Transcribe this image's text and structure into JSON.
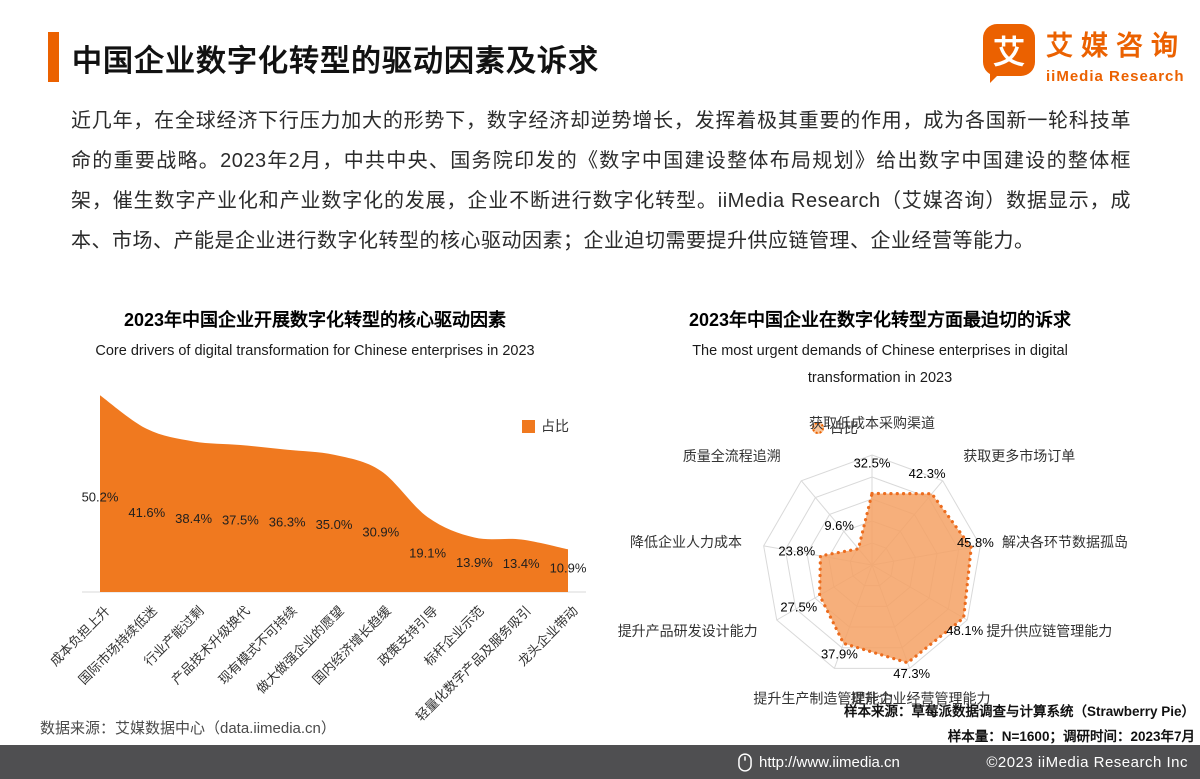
{
  "header": {
    "title": "中国企业数字化转型的驱动因素及诉求",
    "logo": {
      "mark": "艾",
      "brand_cn": "艾媒咨询",
      "brand_en": "iiMedia Research"
    }
  },
  "intro": "近几年，在全球经济下行压力加大的形势下，数字经济却逆势增长，发挥着极其重要的作用，成为各国新一轮科技革命的重要战略。2023年2月，中共中央、国务院印发的《数字中国建设整体布局规划》给出数字中国建设的整体框架，催生数字产业化和产业数字化的发展，企业不断进行数字化转型。iiMedia Research（艾媒咨询）数据显示，成本、市场、产能是企业进行数字化转型的核心驱动因素；企业迫切需要提升供应链管理、企业经营等能力。",
  "chart_data": [
    {
      "type": "area",
      "title": "2023年中国企业开展数字化转型的核心驱动因素",
      "subtitle": "Core drivers of digital transformation for Chinese enterprises in 2023",
      "legend": "占比",
      "categories": [
        "成本负担上升",
        "国际市场持续低迷",
        "行业产能过剩",
        "产品技术升级换代",
        "现有模式不可持续",
        "做大做强企业的愿望",
        "国内经济增长趋缓",
        "政策支持引导",
        "标杆企业示范",
        "轻量化数字产品及服务吸引",
        "龙头企业带动"
      ],
      "values": [
        50.2,
        41.6,
        38.4,
        37.5,
        36.3,
        35.0,
        30.9,
        19.1,
        13.9,
        13.4,
        10.9
      ],
      "unit": "%",
      "ylim": [
        0,
        55
      ],
      "grid": false,
      "legend_position": "top-right"
    },
    {
      "type": "radar",
      "title": "2023年中国企业在数字化转型方面最迫切的诉求",
      "subtitle": "The most urgent demands of Chinese enterprises in digital transformation in 2023",
      "legend": "占比",
      "categories": [
        "获取低成本采购渠道",
        "获取更多市场订单",
        "解决各环节数据孤岛",
        "提升供应链管理能力",
        "提升企业经营管理能力",
        "提升生产制造管理能力",
        "提升产品研发设计能力",
        "降低企业人力成本",
        "质量全流程追溯"
      ],
      "values": [
        32.5,
        42.3,
        45.8,
        48.1,
        47.3,
        37.9,
        27.5,
        23.8,
        9.6
      ],
      "unit": "%",
      "max": 50,
      "levels": 5,
      "legend_position": "top"
    }
  ],
  "colors": {
    "accent": "#EB6100",
    "area_fill": "#F0791F",
    "radar_fill": "#F4A164",
    "radar_stroke": "#EC6C1E",
    "grid_line": "#D9D9D9",
    "footer_bg": "#4F4F51"
  },
  "footnotes": {
    "data_source": "数据来源：艾媒数据中心（data.iimedia.cn）",
    "sample_source": "样本来源：草莓派数据调查与计算系统（Strawberry Pie）",
    "sample_info": "样本量：N=1600；调研时间：2023年7月"
  },
  "footer": {
    "url": "http://www.iimedia.cn",
    "copyright": "©2023 iiMedia Research Inc"
  }
}
